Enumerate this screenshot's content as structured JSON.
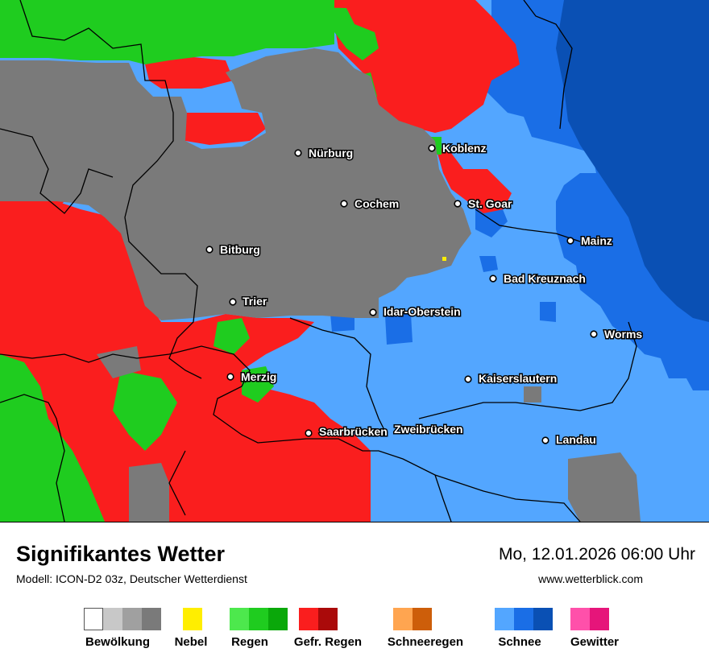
{
  "map": {
    "cities": [
      {
        "name": "Nürburg"
      },
      {
        "name": "Koblenz"
      },
      {
        "name": "Cochem"
      },
      {
        "name": "St. Goar"
      },
      {
        "name": "Mainz"
      },
      {
        "name": "Bitburg"
      },
      {
        "name": "Bad Kreuznach"
      },
      {
        "name": "Trier"
      },
      {
        "name": "Idar-Oberstein"
      },
      {
        "name": "Worms"
      },
      {
        "name": "Merzig"
      },
      {
        "name": "Kaiserslautern"
      },
      {
        "name": "Saarbrücken"
      },
      {
        "name": "Zweibrücken"
      },
      {
        "name": "Landau"
      }
    ]
  },
  "footer": {
    "title": "Signifikantes Wetter",
    "subtitle": "Modell: ICON-D2 03z, Deutscher Wetterdienst",
    "datetime": "Mo, 12.01.2026 06:00 Uhr",
    "website": "www.wetterblick.com"
  },
  "legend": [
    {
      "label": "Bewölkung",
      "colors": [
        "#ffffff",
        "#c8c8c8",
        "#a0a0a0",
        "#7a7a7a"
      ]
    },
    {
      "label": "Nebel",
      "colors": [
        "#ffee00"
      ]
    },
    {
      "label": "Regen",
      "colors": [
        "#4de84d",
        "#1fcc1f",
        "#0aa80a"
      ]
    },
    {
      "label": "Gefr. Regen",
      "colors": [
        "#fa1e1e",
        "#aa0a0a"
      ]
    },
    {
      "label": "Schneeregen",
      "colors": [
        "#ffa550",
        "#cd5e0a"
      ]
    },
    {
      "label": "Schnee",
      "colors": [
        "#53a6ff",
        "#1a6ee6",
        "#0a50b4"
      ]
    },
    {
      "label": "Gewitter",
      "colors": [
        "#ff50aa",
        "#e6157a"
      ]
    }
  ]
}
